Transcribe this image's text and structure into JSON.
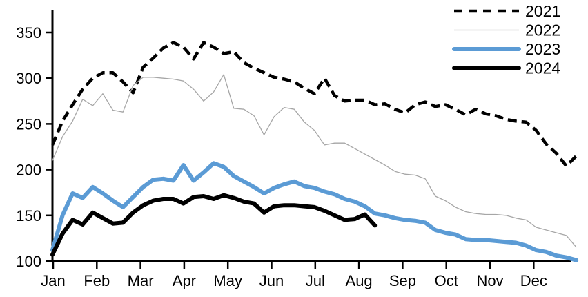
{
  "chart_data": {
    "type": "line",
    "title": "",
    "xlabel": "",
    "ylabel": "",
    "x_axis": {
      "tick_labels": [
        "Jan",
        "Feb",
        "Mar",
        "Apr",
        "May",
        "Jun",
        "Jul",
        "Aug",
        "Sep",
        "Oct",
        "Nov",
        "Dec"
      ]
    },
    "y_axis": {
      "ticks": [
        100,
        150,
        200,
        250,
        300,
        350
      ],
      "range": [
        100,
        360
      ]
    },
    "grid": false,
    "legend_position": "top-right",
    "points_per_series": "weekly, 53 points spanning Jan-Dec",
    "series": [
      {
        "name": "2021",
        "color": "#000000",
        "line_style": "dashed",
        "stroke_width": 4.5,
        "values": [
          227,
          253,
          271,
          288,
          300,
          306,
          306,
          296,
          284,
          312,
          322,
          333,
          339,
          334,
          321,
          339,
          334,
          327,
          329,
          317,
          311,
          306,
          301,
          299,
          296,
          289,
          283,
          300,
          281,
          275,
          276,
          276,
          271,
          272,
          266,
          262,
          271,
          274,
          269,
          271,
          266,
          260,
          266,
          261,
          259,
          255,
          253,
          252,
          243,
          228,
          218,
          204,
          215
        ]
      },
      {
        "name": "2022",
        "color": "#A6A6A6",
        "line_style": "solid-thin",
        "stroke_width": 1.3,
        "values": [
          210,
          236,
          253,
          277,
          270,
          283,
          265,
          263,
          292,
          301,
          301,
          300,
          299,
          297,
          288,
          275,
          285,
          304,
          267,
          266,
          259,
          238,
          258,
          268,
          266,
          252,
          243,
          227,
          229,
          229,
          223,
          217,
          211,
          205,
          198,
          195,
          194,
          190,
          171,
          166,
          159,
          154,
          152,
          151,
          151,
          150,
          147,
          145,
          137,
          134,
          131,
          128,
          115
        ]
      },
      {
        "name": "2023",
        "color": "#5B9BD5",
        "line_style": "solid-thick",
        "stroke_width": 6,
        "values": [
          112,
          150,
          174,
          169,
          181,
          174,
          166,
          159,
          170,
          181,
          189,
          190,
          188,
          205,
          188,
          197,
          207,
          203,
          193,
          187,
          181,
          174,
          180,
          184,
          187,
          182,
          180,
          176,
          173,
          168,
          165,
          160,
          152,
          150,
          147,
          145,
          144,
          142,
          134,
          131,
          129,
          124,
          123,
          123,
          122,
          121,
          120,
          117,
          112,
          110,
          106,
          104,
          101
        ]
      },
      {
        "name": "2024",
        "color": "#000000",
        "line_style": "solid-thick",
        "stroke_width": 6,
        "values": [
          107,
          130,
          145,
          140,
          153,
          147,
          141,
          142,
          153,
          161,
          166,
          168,
          168,
          163,
          170,
          171,
          168,
          172,
          169,
          165,
          163,
          153,
          160,
          161,
          161,
          160,
          159,
          155,
          150,
          145,
          146,
          151,
          139
        ]
      }
    ]
  },
  "colors": {
    "axis": "#000000",
    "background": "#FFFFFF",
    "accent_blue": "#5B9BD5",
    "gray_line": "#A6A6A6"
  }
}
